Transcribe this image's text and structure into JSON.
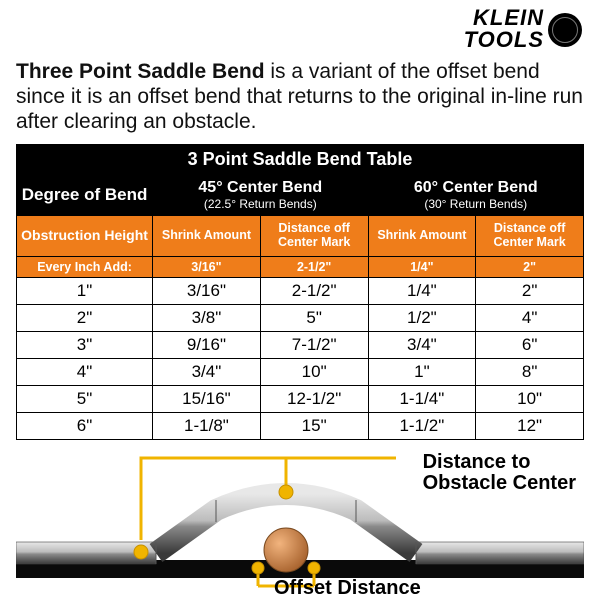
{
  "brand": {
    "line1": "KLEIN",
    "line2": "TOOLS"
  },
  "heading": {
    "bold": "Three Point Saddle Bend",
    "rest": " is a variant of the offset bend since it is an offset bend that returns to the original in-line run after clearing an obstacle."
  },
  "table": {
    "title": "3 Point Saddle Bend Table",
    "degree_label": "Degree of Bend",
    "groups": [
      {
        "title": "45° Center Bend",
        "sub": "(22.5° Return Bends)"
      },
      {
        "title": "60° Center Bend",
        "sub": "(30° Return Bends)"
      }
    ],
    "col_heads": {
      "obstruction": "Obstruction Height",
      "shrink": "Shrink Amount",
      "dist": "Distance off Center Mark"
    },
    "every_row": {
      "label": "Every Inch Add:",
      "c45_shrink": "3/16\"",
      "c45_dist": "2-1/2\"",
      "c60_shrink": "1/4\"",
      "c60_dist": "2\""
    },
    "rows": [
      {
        "h": "1\"",
        "s45": "3/16\"",
        "d45": "2-1/2\"",
        "s60": "1/4\"",
        "d60": "2\""
      },
      {
        "h": "2\"",
        "s45": "3/8\"",
        "d45": "5\"",
        "s60": "1/2\"",
        "d60": "4\""
      },
      {
        "h": "3\"",
        "s45": "9/16\"",
        "d45": "7-1/2\"",
        "s60": "3/4\"",
        "d60": "6\""
      },
      {
        "h": "4\"",
        "s45": "3/4\"",
        "d45": "10\"",
        "s60": "1\"",
        "d60": "8\""
      },
      {
        "h": "5\"",
        "s45": "15/16\"",
        "d45": "12-1/2\"",
        "s60": "1-1/4\"",
        "d60": "10\""
      },
      {
        "h": "6\"",
        "s45": "1-1/8\"",
        "d45": "15\"",
        "s60": "1-1/2\"",
        "d60": "12\""
      }
    ]
  },
  "diagram": {
    "label_distance": "Distance to Obstacle Center",
    "label_offset": "Offset Distance",
    "colors": {
      "marker": "#f0b400",
      "marker_stroke": "#c69000",
      "obstacle_fill": "#c87a3a",
      "obstacle_stroke": "#7a4a20",
      "pipe_light": "#e8e8e8",
      "pipe_mid": "#a0a0a0",
      "pipe_dark": "#4a4a4a",
      "base": "#0a0a0a",
      "line": "#f0b400"
    }
  }
}
